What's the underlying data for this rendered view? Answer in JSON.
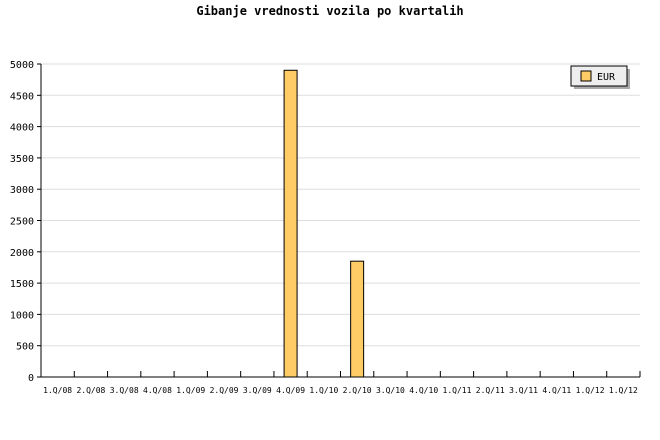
{
  "chart_data": {
    "type": "bar",
    "title": "Gibanje vrednosti vozila po kvartalih",
    "categories": [
      "1.Q/08",
      "2.Q/08",
      "3.Q/08",
      "4.Q/08",
      "1.Q/09",
      "2.Q/09",
      "3.Q/09",
      "4.Q/09",
      "1.Q/10",
      "2.Q/10",
      "3.Q/10",
      "4.Q/10",
      "1.Q/11",
      "2.Q/11",
      "3.Q/11",
      "4.Q/11",
      "1.Q/12",
      "1.Q/12"
    ],
    "series": [
      {
        "name": "EUR",
        "values": [
          0,
          0,
          0,
          0,
          0,
          0,
          0,
          4900,
          0,
          1850,
          0,
          0,
          0,
          0,
          0,
          0,
          0,
          0
        ],
        "color": "#ffcc66"
      }
    ],
    "ylim": [
      0,
      5000
    ],
    "yticks": [
      0,
      500,
      1000,
      1500,
      2000,
      2500,
      3000,
      3500,
      4000,
      4500,
      5000
    ],
    "grid": true,
    "legend": "top-right"
  }
}
